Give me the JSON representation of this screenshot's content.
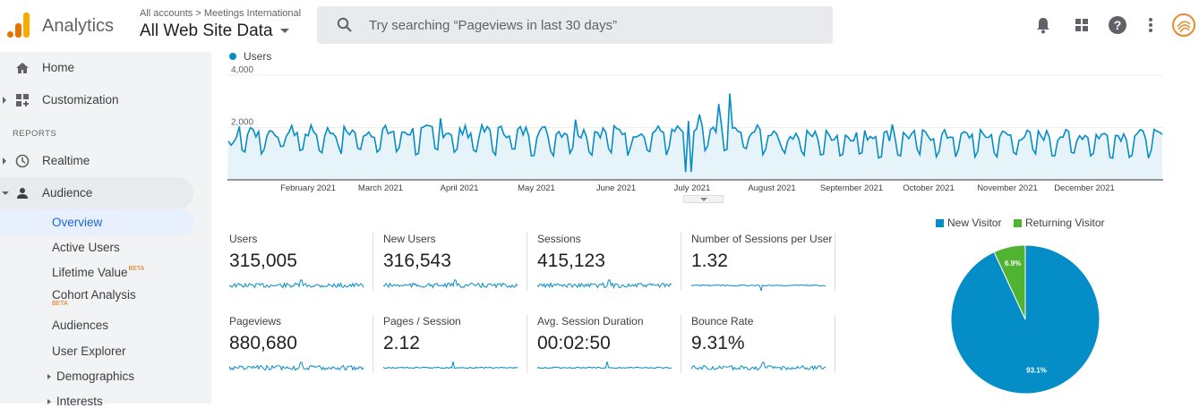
{
  "header": {
    "app_name": "Analytics",
    "breadcrumb": "All accounts > Meetings International",
    "property": "All Web Site Data",
    "search_placeholder": "Try searching “Pageviews in last 30 days”"
  },
  "sidebar": {
    "home": "Home",
    "customization": "Customization",
    "reports_heading": "REPORTS",
    "realtime": "Realtime",
    "audience": "Audience",
    "items": {
      "overview": "Overview",
      "active_users": "Active Users",
      "lifetime_value": "Lifetime Value",
      "cohort_analysis": "Cohort Analysis",
      "audiences": "Audiences",
      "user_explorer": "User Explorer",
      "demographics": "Demographics",
      "interests": "Interests"
    },
    "beta_label": "BETA"
  },
  "users_chart": {
    "legend": "Users",
    "color": "#058dc7"
  },
  "chart_data": {
    "type": "area",
    "series": [
      {
        "name": "Users"
      }
    ],
    "y_ticks": [
      "4,000",
      "2,000"
    ],
    "ylim": [
      0,
      4000
    ],
    "x_tick_labels": [
      "February 2021",
      "March 2021",
      "April 2021",
      "May 2021",
      "June 2021",
      "July 2021",
      "August 2021",
      "September 2021",
      "October 2021",
      "November 2021",
      "December 2021"
    ]
  },
  "metrics": [
    {
      "title": "Users",
      "value": "315,005"
    },
    {
      "title": "New Users",
      "value": "316,543"
    },
    {
      "title": "Sessions",
      "value": "415,123"
    },
    {
      "title": "Number of Sessions per User",
      "value": "1.32"
    },
    {
      "title": "Pageviews",
      "value": "880,680"
    },
    {
      "title": "Pages / Session",
      "value": "2.12"
    },
    {
      "title": "Avg. Session Duration",
      "value": "00:02:50"
    },
    {
      "title": "Bounce Rate",
      "value": "9.31%"
    }
  ],
  "pie": {
    "legend": [
      {
        "label": "New Visitor",
        "color": "#058dc7"
      },
      {
        "label": "Returning Visitor",
        "color": "#50b432"
      }
    ],
    "slices": [
      {
        "label": "93.1%",
        "value": 93.1
      },
      {
        "label": "6.9%",
        "value": 6.9
      }
    ]
  }
}
